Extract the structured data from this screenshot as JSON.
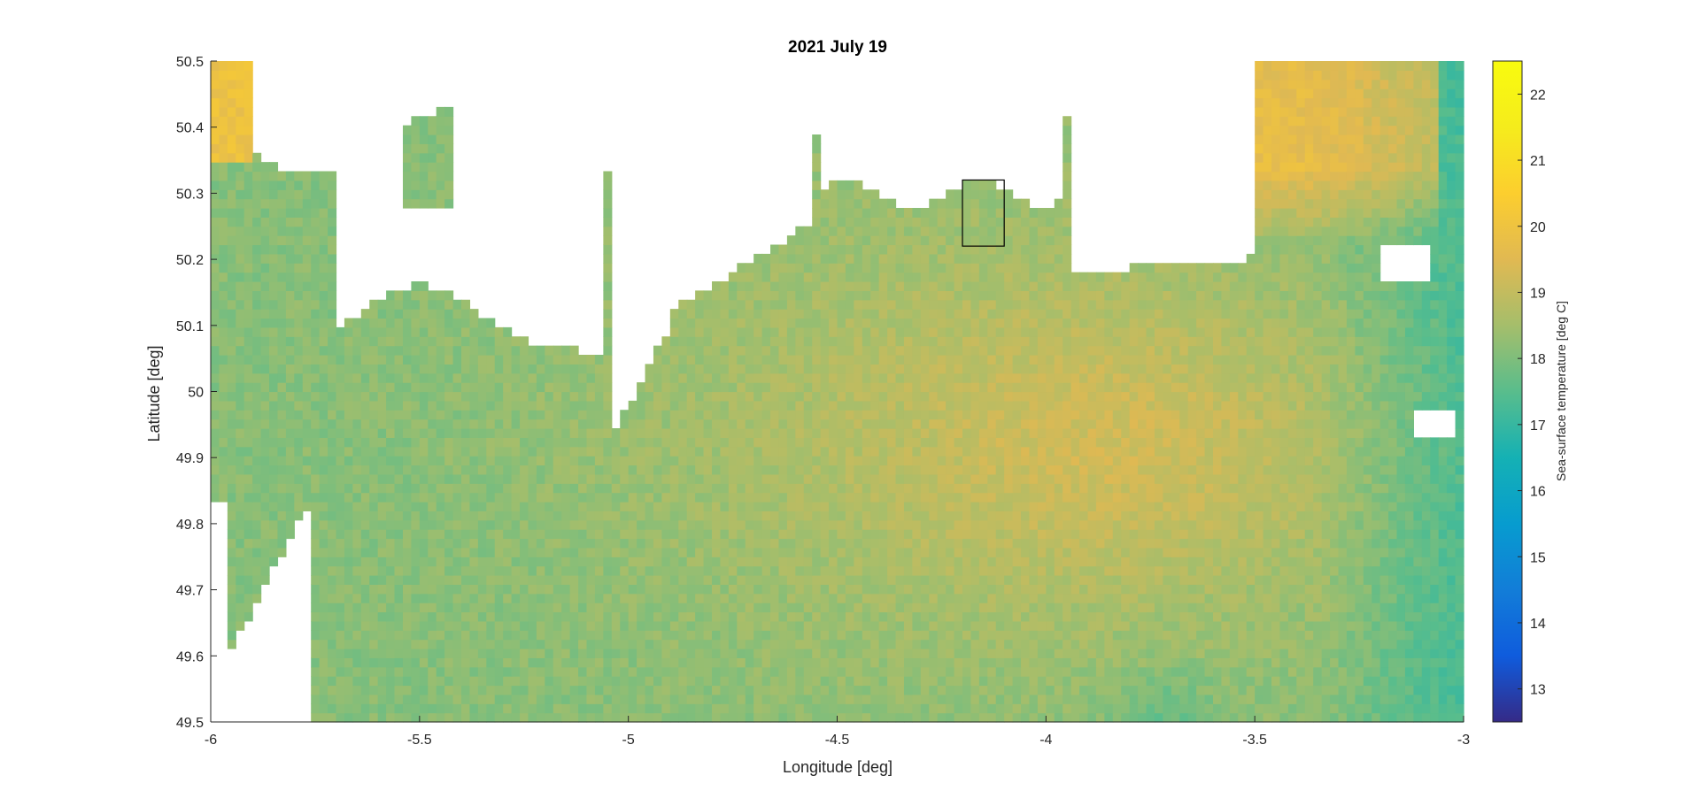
{
  "chart_data": {
    "type": "heatmap",
    "title": "2021 July 19",
    "xlabel": "Longitude [deg]",
    "ylabel": "Latitude [deg]",
    "xlim": [
      -6,
      -3
    ],
    "ylim": [
      49.5,
      50.5
    ],
    "xticks": [
      -6,
      -5.5,
      -5,
      -4.5,
      -4,
      -3.5,
      -3
    ],
    "xtick_labels": [
      "-6",
      "-5.5",
      "-5",
      "-4.5",
      "-4",
      "-3.5",
      "-3"
    ],
    "yticks": [
      49.5,
      49.6,
      49.7,
      49.8,
      49.9,
      50,
      50.1,
      50.2,
      50.3,
      50.4,
      50.5
    ],
    "ytick_labels": [
      "49.5",
      "49.6",
      "49.7",
      "49.8",
      "49.9",
      "50",
      "50.1",
      "50.2",
      "50.3",
      "50.4",
      "50.5"
    ],
    "colorbar": {
      "label": "Sea-surface temperature [deg C]",
      "clim": [
        12.5,
        22.5
      ],
      "ticks": [
        13,
        14,
        15,
        16,
        17,
        18,
        19,
        20,
        21,
        22
      ],
      "tick_labels": [
        "13",
        "14",
        "15",
        "16",
        "17",
        "18",
        "19",
        "20",
        "21",
        "22"
      ],
      "colormap": "parula"
    },
    "box": {
      "lon": [
        -4.2,
        -4.1
      ],
      "lat": [
        50.22,
        50.32
      ]
    },
    "typical_range_deg_c": [
      16,
      21
    ],
    "grid": false
  }
}
